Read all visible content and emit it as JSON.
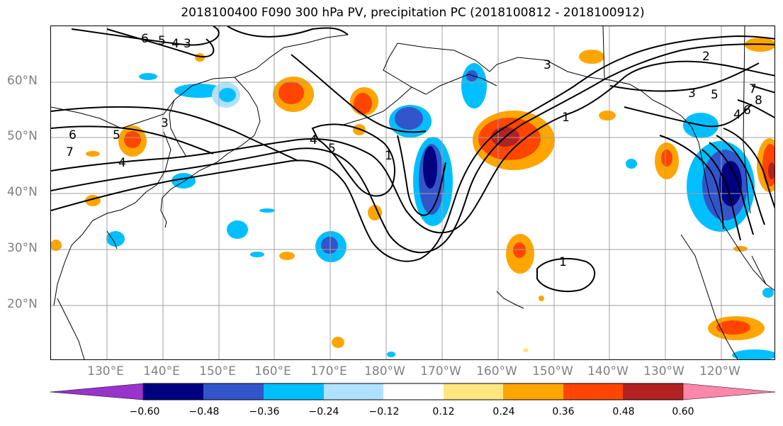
{
  "title": "2018100400 F090 300 hPa PV, precipitation PC (2018100812 - 2018100912)",
  "lat_labels": [
    "60°N",
    "50°N",
    "40°N",
    "30°N",
    "20°N"
  ],
  "lon_labels": [
    "130°E",
    "140°E",
    "150°E",
    "160°E",
    "170°E",
    "180°W",
    "170°W",
    "160°W",
    "150°W",
    "140°W",
    "130°W",
    "120°W"
  ],
  "contour_labels": [
    "6",
    "5",
    "4",
    "3",
    "6",
    "5",
    "7",
    "4",
    "3",
    "4",
    "5",
    "1",
    "1",
    "3",
    "2",
    "1",
    "5",
    "7",
    "8",
    "6",
    "4",
    "3"
  ],
  "colorbar": {
    "ticks": [
      "−0.60",
      "−0.48",
      "−0.36",
      "−0.24",
      "−0.12",
      "0.12",
      "0.24",
      "0.36",
      "0.48",
      "0.60"
    ],
    "colors": [
      "#9933cc",
      "#000080",
      "#3355cc",
      "#00bfff",
      "#b0e2ff",
      "#ffffff",
      "#ffe680",
      "#ffa500",
      "#ff4500",
      "#b22222",
      "#ff88aa"
    ]
  }
}
